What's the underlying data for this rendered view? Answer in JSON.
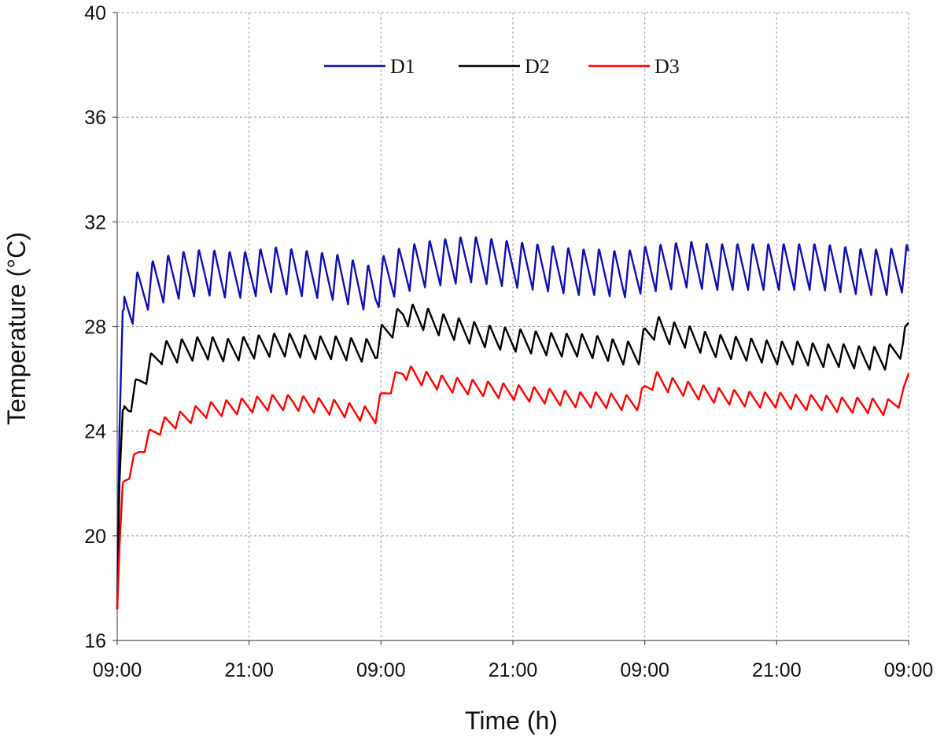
{
  "chart_data": {
    "type": "line",
    "title": "",
    "xlabel": "Time (h)",
    "ylabel": "Temperature (°C)",
    "ylim": [
      16,
      40
    ],
    "yticks": [
      16,
      20,
      24,
      28,
      32,
      36,
      40
    ],
    "x_hours_range": [
      0,
      72
    ],
    "xticks": [
      {
        "hour": 0,
        "label": "09:00"
      },
      {
        "hour": 12,
        "label": "21:00"
      },
      {
        "hour": 24,
        "label": "09:00"
      },
      {
        "hour": 36,
        "label": "21:00"
      },
      {
        "hour": 48,
        "label": "09:00"
      },
      {
        "hour": 60,
        "label": "21:00"
      },
      {
        "hour": 72,
        "label": "09:00"
      }
    ],
    "grid": true,
    "legend_position": "top-center",
    "series": [
      {
        "name": "D1",
        "color": "#1010b0",
        "x": [
          0,
          0.2,
          0.5,
          1,
          2,
          3,
          4,
          6,
          8,
          10,
          12,
          14,
          16,
          18,
          20,
          22,
          23.5,
          24,
          26,
          28,
          30,
          32,
          34,
          36,
          38,
          40,
          42,
          44,
          46,
          48,
          50,
          52,
          54,
          56,
          58,
          60,
          62,
          64,
          66,
          68,
          70,
          71.5,
          72
        ],
        "y": [
          17.2,
          24,
          28.6,
          28.8,
          29.3,
          29.6,
          29.8,
          30.0,
          30.1,
          30.0,
          30.0,
          30.2,
          30.1,
          30.0,
          29.9,
          29.6,
          29.4,
          29.8,
          30.2,
          30.4,
          30.5,
          30.6,
          30.5,
          30.4,
          30.3,
          30.2,
          30.1,
          30.1,
          30.0,
          30.2,
          30.3,
          30.4,
          30.3,
          30.3,
          30.3,
          30.3,
          30.3,
          30.3,
          30.2,
          30.1,
          30.1,
          30.2,
          30.3
        ],
        "oscillation_amplitude": 1.8,
        "oscillation_period_h": 1.4
      },
      {
        "name": "D2",
        "color": "#000000",
        "x": [
          0,
          0.2,
          0.5,
          1,
          2,
          3,
          4,
          6,
          8,
          10,
          12,
          14,
          16,
          18,
          20,
          22,
          23.5,
          24,
          25,
          26,
          28,
          30,
          32,
          34,
          36,
          38,
          40,
          42,
          44,
          46,
          47.5,
          48,
          49,
          50,
          52,
          54,
          56,
          58,
          60,
          62,
          64,
          66,
          68,
          70,
          71.5,
          72
        ],
        "y": [
          17.2,
          22,
          24.8,
          25.0,
          25.8,
          26.5,
          27.0,
          27.1,
          27.2,
          27.1,
          27.2,
          27.3,
          27.3,
          27.2,
          27.2,
          27.1,
          27.1,
          27.6,
          28.0,
          28.5,
          28.3,
          28.0,
          27.8,
          27.6,
          27.5,
          27.4,
          27.3,
          27.3,
          27.2,
          27.0,
          27.0,
          27.6,
          28.0,
          27.8,
          27.6,
          27.3,
          27.2,
          27.1,
          27.0,
          27.0,
          26.9,
          26.9,
          26.8,
          26.8,
          27.3,
          28.0
        ],
        "oscillation_amplitude": 0.9,
        "oscillation_period_h": 1.4
      },
      {
        "name": "D3",
        "color": "#ff0000",
        "x": [
          0,
          0.2,
          0.5,
          1,
          2,
          3,
          4,
          6,
          8,
          10,
          12,
          14,
          16,
          18,
          20,
          22,
          23.5,
          24,
          25,
          26,
          28,
          30,
          32,
          34,
          36,
          38,
          40,
          42,
          44,
          46,
          47.5,
          48,
          49,
          50,
          52,
          54,
          56,
          58,
          60,
          62,
          64,
          66,
          68,
          70,
          71.5,
          72
        ],
        "y": [
          17.2,
          19.5,
          22.0,
          22.4,
          23.2,
          23.8,
          24.2,
          24.5,
          24.8,
          24.9,
          25.0,
          25.1,
          25.1,
          25.0,
          24.9,
          24.7,
          24.6,
          25.2,
          25.8,
          26.3,
          26.0,
          25.8,
          25.7,
          25.6,
          25.5,
          25.4,
          25.3,
          25.2,
          25.2,
          25.1,
          25.1,
          25.6,
          26.0,
          25.8,
          25.6,
          25.4,
          25.3,
          25.2,
          25.2,
          25.1,
          25.1,
          25.0,
          25.0,
          24.9,
          25.3,
          26.2
        ],
        "oscillation_amplitude": 0.6,
        "oscillation_period_h": 1.4
      }
    ]
  }
}
